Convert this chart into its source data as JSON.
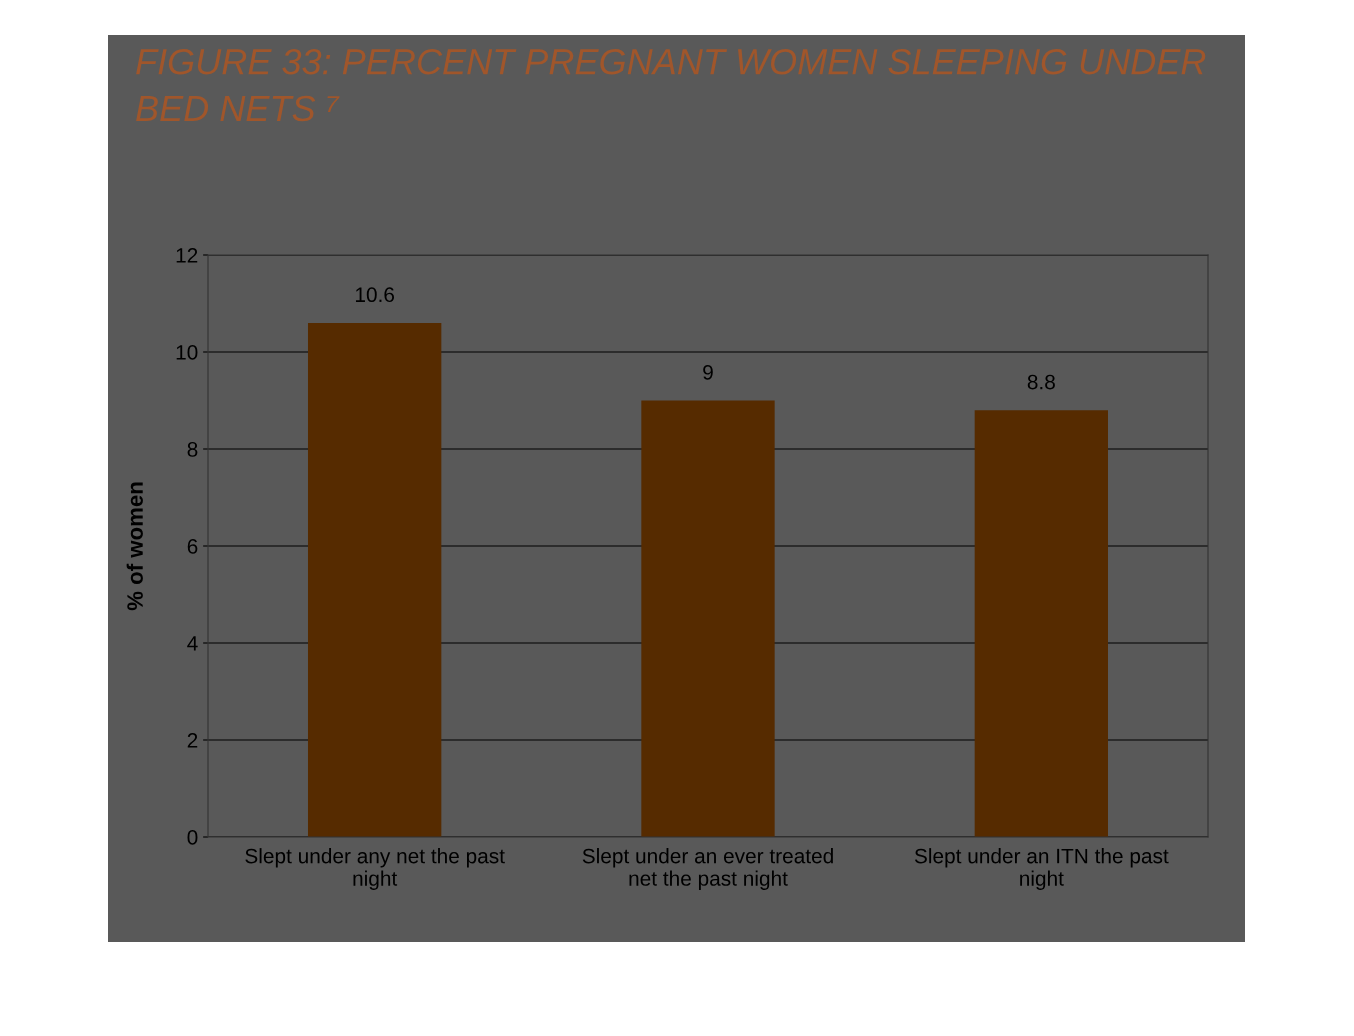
{
  "chart_data": {
    "type": "bar",
    "title": "FIGURE 33: PERCENT PREGNANT WOMEN SLEEPING UNDER BED NETS ⁷",
    "ylabel": "% of women",
    "categories": [
      "Slept under any net the past night",
      "Slept under an ever treated net the past night",
      "Slept under an ITN the past night"
    ],
    "values": [
      10.6,
      9,
      8.8
    ],
    "color": "#562b00",
    "ylim": [
      0,
      12
    ],
    "yticks": [
      0,
      2,
      4,
      6,
      8,
      10,
      12
    ],
    "grid": "y",
    "data_labels": true
  }
}
